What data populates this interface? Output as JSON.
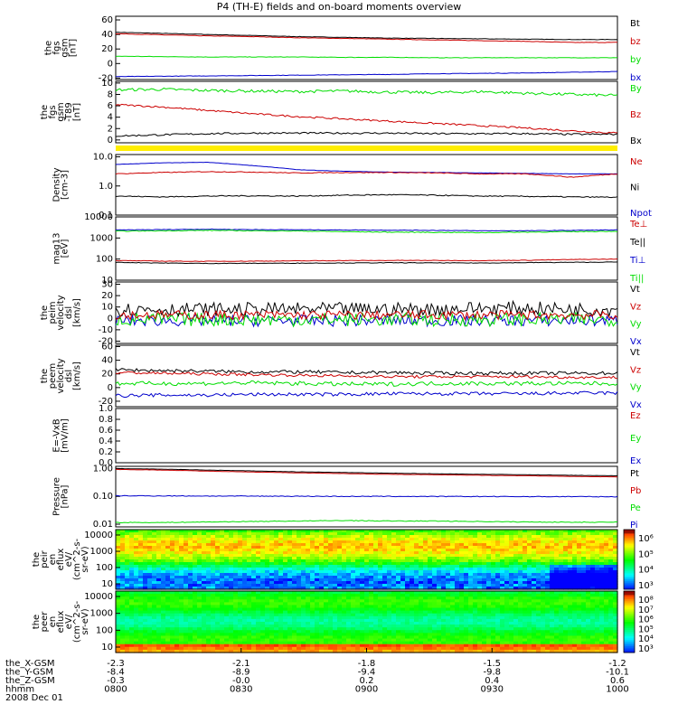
{
  "title": "P4 (TH-E) fields and on-board moments overview",
  "colors": {
    "black": "#000000",
    "red": "#cc0000",
    "green": "#00dd00",
    "blue": "#0000cc",
    "yellow": "#ffee00"
  },
  "chart_data": [
    {
      "type": "line",
      "ylabel": [
        "the",
        "fgs",
        "gsm",
        "[nT]"
      ],
      "yticks": [
        "60",
        "40",
        "20",
        "0",
        "-20"
      ],
      "ylim": [
        -22,
        65
      ],
      "legend": [
        {
          "name": "Bt",
          "color": "black"
        },
        {
          "name": "bz",
          "color": "red"
        },
        {
          "name": "by",
          "color": "green"
        },
        {
          "name": "bx",
          "color": "blue"
        }
      ],
      "series": [
        {
          "color": "black",
          "values": [
            43,
            41.5,
            40,
            38.5,
            37,
            36,
            35,
            34.5,
            34,
            33.5,
            33,
            33
          ],
          "noise": 0.3
        },
        {
          "color": "red",
          "values": [
            41,
            39.5,
            38,
            37,
            35.5,
            34.5,
            33.5,
            32.5,
            31.5,
            30.5,
            29,
            29
          ],
          "noise": 0.3
        },
        {
          "color": "green",
          "values": [
            10,
            9.5,
            9,
            9,
            9,
            8.5,
            8.5,
            8,
            8,
            8,
            8,
            8
          ],
          "noise": 0.3
        },
        {
          "color": "blue",
          "values": [
            -18,
            -17.5,
            -17,
            -16.5,
            -16,
            -15.5,
            -15,
            -14,
            -13.5,
            -13,
            -12,
            -11
          ],
          "noise": 0.3
        }
      ]
    },
    {
      "type": "line",
      "ylabel": [
        "the",
        "fgs",
        "gsm",
        "-T89",
        "[nT]"
      ],
      "yticks": [
        "10",
        "8",
        "6",
        "4",
        "2",
        "0"
      ],
      "ylim": [
        -0.5,
        10.3
      ],
      "legend": [
        {
          "name": "By",
          "color": "green"
        },
        {
          "name": "Bz",
          "color": "red"
        },
        {
          "name": "Bx",
          "color": "black"
        }
      ],
      "series": [
        {
          "color": "green",
          "values": [
            8.8,
            8.9,
            8.7,
            8.6,
            8.5,
            8.6,
            8.4,
            8.3,
            8.5,
            8.2,
            8.0,
            7.8
          ],
          "noise": 0.25
        },
        {
          "color": "red",
          "values": [
            6.2,
            5.8,
            5.2,
            4.6,
            4.1,
            3.7,
            3.3,
            2.9,
            2.5,
            2.1,
            1.6,
            1.2
          ],
          "noise": 0.15
        },
        {
          "color": "black",
          "values": [
            0.7,
            0.9,
            1.1,
            1.2,
            1.2,
            1.2,
            1.2,
            1.1,
            1.1,
            1.1,
            1.0,
            1.0
          ],
          "noise": 0.15
        }
      ]
    },
    {
      "type": "line",
      "log": true,
      "ylabel": [
        "Density",
        "[cm-3]"
      ],
      "yticks": [
        "10.0",
        "1.0",
        "0.1"
      ],
      "ylim": [
        0.1,
        12
      ],
      "legend": [
        {
          "name": "Ne",
          "color": "red"
        },
        {
          "name": "Ni",
          "color": "black"
        },
        {
          "name": "Npot",
          "color": "blue"
        }
      ],
      "series": [
        {
          "color": "blue",
          "values": [
            5.5,
            6.2,
            6.5,
            5.0,
            3.6,
            3.2,
            3.0,
            2.9,
            2.8,
            2.7,
            2.6,
            2.6
          ],
          "noise": 0.01
        },
        {
          "color": "red",
          "values": [
            2.6,
            2.9,
            3.1,
            3.0,
            2.8,
            2.9,
            2.9,
            2.8,
            2.6,
            2.6,
            2.0,
            2.6
          ],
          "noise": 0.03
        },
        {
          "color": "black",
          "values": [
            0.45,
            0.42,
            0.45,
            0.46,
            0.45,
            0.48,
            0.5,
            0.48,
            0.45,
            0.44,
            0.42,
            0.41
          ],
          "noise": 0.04
        }
      ]
    },
    {
      "type": "line",
      "log": true,
      "ylabel": [
        "mag13",
        "[eV]"
      ],
      "yticks": [
        "10000",
        "1000",
        "100",
        "10"
      ],
      "ylim": [
        10,
        10000
      ],
      "legend": [
        {
          "name": "Te⊥",
          "color": "red"
        },
        {
          "name": "Te||",
          "color": "black"
        },
        {
          "name": "Ti⊥",
          "color": "blue"
        },
        {
          "name": "Ti||",
          "color": "green"
        }
      ],
      "series": [
        {
          "color": "blue",
          "values": [
            2400,
            2500,
            2600,
            2500,
            2450,
            2400,
            2350,
            2300,
            2200,
            2200,
            2300,
            2400
          ],
          "noise": 0.03
        },
        {
          "color": "green",
          "values": [
            2100,
            2200,
            2300,
            2200,
            2150,
            2000,
            1900,
            1850,
            1800,
            1900,
            2000,
            2100
          ],
          "noise": 0.04
        },
        {
          "color": "red",
          "values": [
            85,
            80,
            78,
            80,
            82,
            85,
            86,
            86,
            85,
            88,
            95,
            100
          ],
          "noise": 0.03
        },
        {
          "color": "black",
          "values": [
            70,
            65,
            62,
            63,
            64,
            65,
            67,
            66,
            65,
            68,
            70,
            72
          ],
          "noise": 0.03
        }
      ]
    },
    {
      "type": "line",
      "ylabel": [
        "the",
        "peim",
        "velocity",
        "dsl",
        "[km/s]"
      ],
      "yticks": [
        "30",
        "20",
        "10",
        "0",
        "-10",
        "-20"
      ],
      "ylim": [
        -22,
        32
      ],
      "legend": [
        {
          "name": "Vt",
          "color": "black"
        },
        {
          "name": "Vz",
          "color": "red"
        },
        {
          "name": "Vy",
          "color": "green"
        },
        {
          "name": "Vx",
          "color": "blue"
        }
      ],
      "series": [
        {
          "color": "blue",
          "values": [
            -2,
            -2,
            -2,
            -2,
            -2,
            -2,
            -2,
            -2,
            -2,
            -2,
            -2,
            -2
          ],
          "noise": 5
        },
        {
          "color": "green",
          "values": [
            -1,
            -1,
            -1,
            -1,
            -1,
            -1,
            -1,
            -1,
            -1,
            -1,
            -1,
            -1
          ],
          "noise": 6
        },
        {
          "color": "black",
          "values": [
            8,
            8,
            8,
            8,
            8,
            8,
            8,
            8,
            9,
            9,
            8,
            8
          ],
          "noise": 6
        },
        {
          "color": "red",
          "values": [
            3,
            3,
            3,
            3,
            3,
            3,
            3,
            3,
            3,
            3,
            3,
            3
          ],
          "noise": 4
        }
      ]
    },
    {
      "type": "line",
      "ylabel": [
        "the",
        "peem",
        "velocity",
        "dsl",
        "[km/s]"
      ],
      "yticks": [
        "60",
        "40",
        "20",
        "0",
        "-20"
      ],
      "ylim": [
        -28,
        62
      ],
      "legend": [
        {
          "name": "Vt",
          "color": "black"
        },
        {
          "name": "Vz",
          "color": "red"
        },
        {
          "name": "Vy",
          "color": "green"
        },
        {
          "name": "Vx",
          "color": "blue"
        }
      ],
      "series": [
        {
          "color": "black",
          "values": [
            26,
            25,
            24,
            23,
            23,
            22,
            22,
            21,
            21,
            21,
            21,
            21
          ],
          "noise": 2.5
        },
        {
          "color": "red",
          "values": [
            22,
            21,
            20,
            19,
            18,
            17,
            16,
            16,
            16,
            16,
            15,
            15
          ],
          "noise": 2
        },
        {
          "color": "green",
          "values": [
            6,
            6,
            6,
            7,
            6,
            5,
            5,
            6,
            6,
            6,
            6,
            6
          ],
          "noise": 3
        },
        {
          "color": "blue",
          "values": [
            -12,
            -11,
            -11,
            -10,
            -10,
            -10,
            -9,
            -9,
            -9,
            -9,
            -8,
            -8
          ],
          "noise": 2.5
        }
      ]
    },
    {
      "type": "line",
      "ylabel": [
        "E=-VxB",
        "[mV/m]"
      ],
      "yticks": [
        "1.0",
        "0.8",
        "0.6",
        "0.4",
        "0.2",
        "0.0"
      ],
      "ylim": [
        0,
        1
      ],
      "legend": [
        {
          "name": "Ez",
          "color": "red"
        },
        {
          "name": "Ey",
          "color": "green"
        },
        {
          "name": "Ex",
          "color": "blue"
        }
      ],
      "series": []
    },
    {
      "type": "line",
      "log": true,
      "ylabel": [
        "Pressure",
        "[nPa]"
      ],
      "yticks": [
        "1.00",
        "0.10",
        "0.01"
      ],
      "ylim": [
        0.008,
        1.2
      ],
      "legend": [
        {
          "name": "Pt",
          "color": "black"
        },
        {
          "name": "Pb",
          "color": "red"
        },
        {
          "name": "Pe",
          "color": "green"
        },
        {
          "name": "Pi",
          "color": "blue"
        }
      ],
      "series": [
        {
          "color": "black",
          "values": [
            1.0,
            0.95,
            0.88,
            0.82,
            0.76,
            0.72,
            0.68,
            0.65,
            0.62,
            0.6,
            0.57,
            0.55
          ],
          "noise": 0.01
        },
        {
          "color": "red",
          "values": [
            0.93,
            0.88,
            0.81,
            0.75,
            0.7,
            0.66,
            0.62,
            0.6,
            0.57,
            0.55,
            0.52,
            0.5
          ],
          "noise": 0.01
        },
        {
          "color": "blue",
          "values": [
            0.105,
            0.104,
            0.103,
            0.102,
            0.101,
            0.1,
            0.1,
            0.099,
            0.099,
            0.098,
            0.098,
            0.097
          ],
          "noise": 0.03
        },
        {
          "color": "green",
          "values": [
            0.0115,
            0.0115,
            0.012,
            0.0125,
            0.013,
            0.0135,
            0.013,
            0.013,
            0.0125,
            0.012,
            0.0118,
            0.0118
          ],
          "noise": 0.03
        }
      ]
    },
    {
      "type": "heatmap",
      "ylabel": [
        "the",
        "peir",
        "en",
        "eflux",
        "eV/",
        "(cm^2-s-",
        "sr-eV)"
      ],
      "yticks": [
        "10000",
        "1000",
        "100",
        "10"
      ],
      "colorbar": [
        "10⁶",
        "10⁵",
        "10⁴",
        "10³"
      ]
    },
    {
      "type": "heatmap",
      "ylabel": [
        "the",
        "peer",
        "en",
        "eflux",
        "eV/",
        "(cm^2-s-",
        "sr-eV)"
      ],
      "yticks": [
        "10000",
        "1000",
        "100",
        "10"
      ],
      "colorbar": [
        "10⁸",
        "10⁷",
        "10⁶",
        "10⁵",
        "10⁴",
        "10³"
      ]
    }
  ],
  "xaxis": {
    "rows": [
      {
        "label": "the_X-GSM",
        "values": [
          "-2.3",
          "-2.1",
          "-1.8",
          "-1.5",
          "-1.2"
        ]
      },
      {
        "label": "the_Y-GSM",
        "values": [
          "-8.4",
          "-8.9",
          "-9.4",
          "-9.8",
          "-10.1"
        ]
      },
      {
        "label": "the_Z-GSM",
        "values": [
          "-0.3",
          "-0.0",
          "0.2",
          "0.4",
          "0.6"
        ]
      },
      {
        "label": "hhmm",
        "values": [
          "0800",
          "0830",
          "0900",
          "0930",
          "1000"
        ]
      }
    ],
    "date": "2008 Dec 01"
  }
}
